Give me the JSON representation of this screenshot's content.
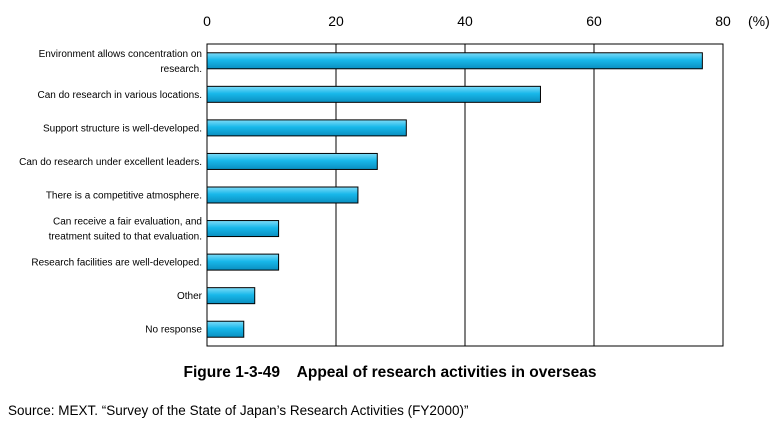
{
  "figure": {
    "caption": "Figure 1-3-49    Appeal of research activities in overseas",
    "source": "Source: MEXT. “Survey of the State of Japan’s Research Activities (FY2000)”"
  },
  "chart_data": {
    "type": "bar",
    "orientation": "horizontal",
    "unit_label": "(%)",
    "xlim": [
      0,
      80
    ],
    "x_ticks": [
      "0",
      "20",
      "40",
      "60",
      "80"
    ],
    "grid": true,
    "tick_position": "top",
    "bar_color": "#14b4e6",
    "categories": [
      [
        "Environment allows concentration on",
        "research."
      ],
      [
        "Can do research in various locations."
      ],
      [
        "Support structure is well-developed."
      ],
      [
        "Can do research under excellent leaders."
      ],
      [
        "There is a competitive atmosphere."
      ],
      [
        "Can receive a fair evaluation, and",
        "treatment suited to that evaluation."
      ],
      [
        "Research facilities are well-developed."
      ],
      [
        "Other"
      ],
      [
        "No response"
      ]
    ],
    "values": [
      76.8,
      51.7,
      30.9,
      26.4,
      23.4,
      11.1,
      11.1,
      7.4,
      5.7
    ]
  }
}
